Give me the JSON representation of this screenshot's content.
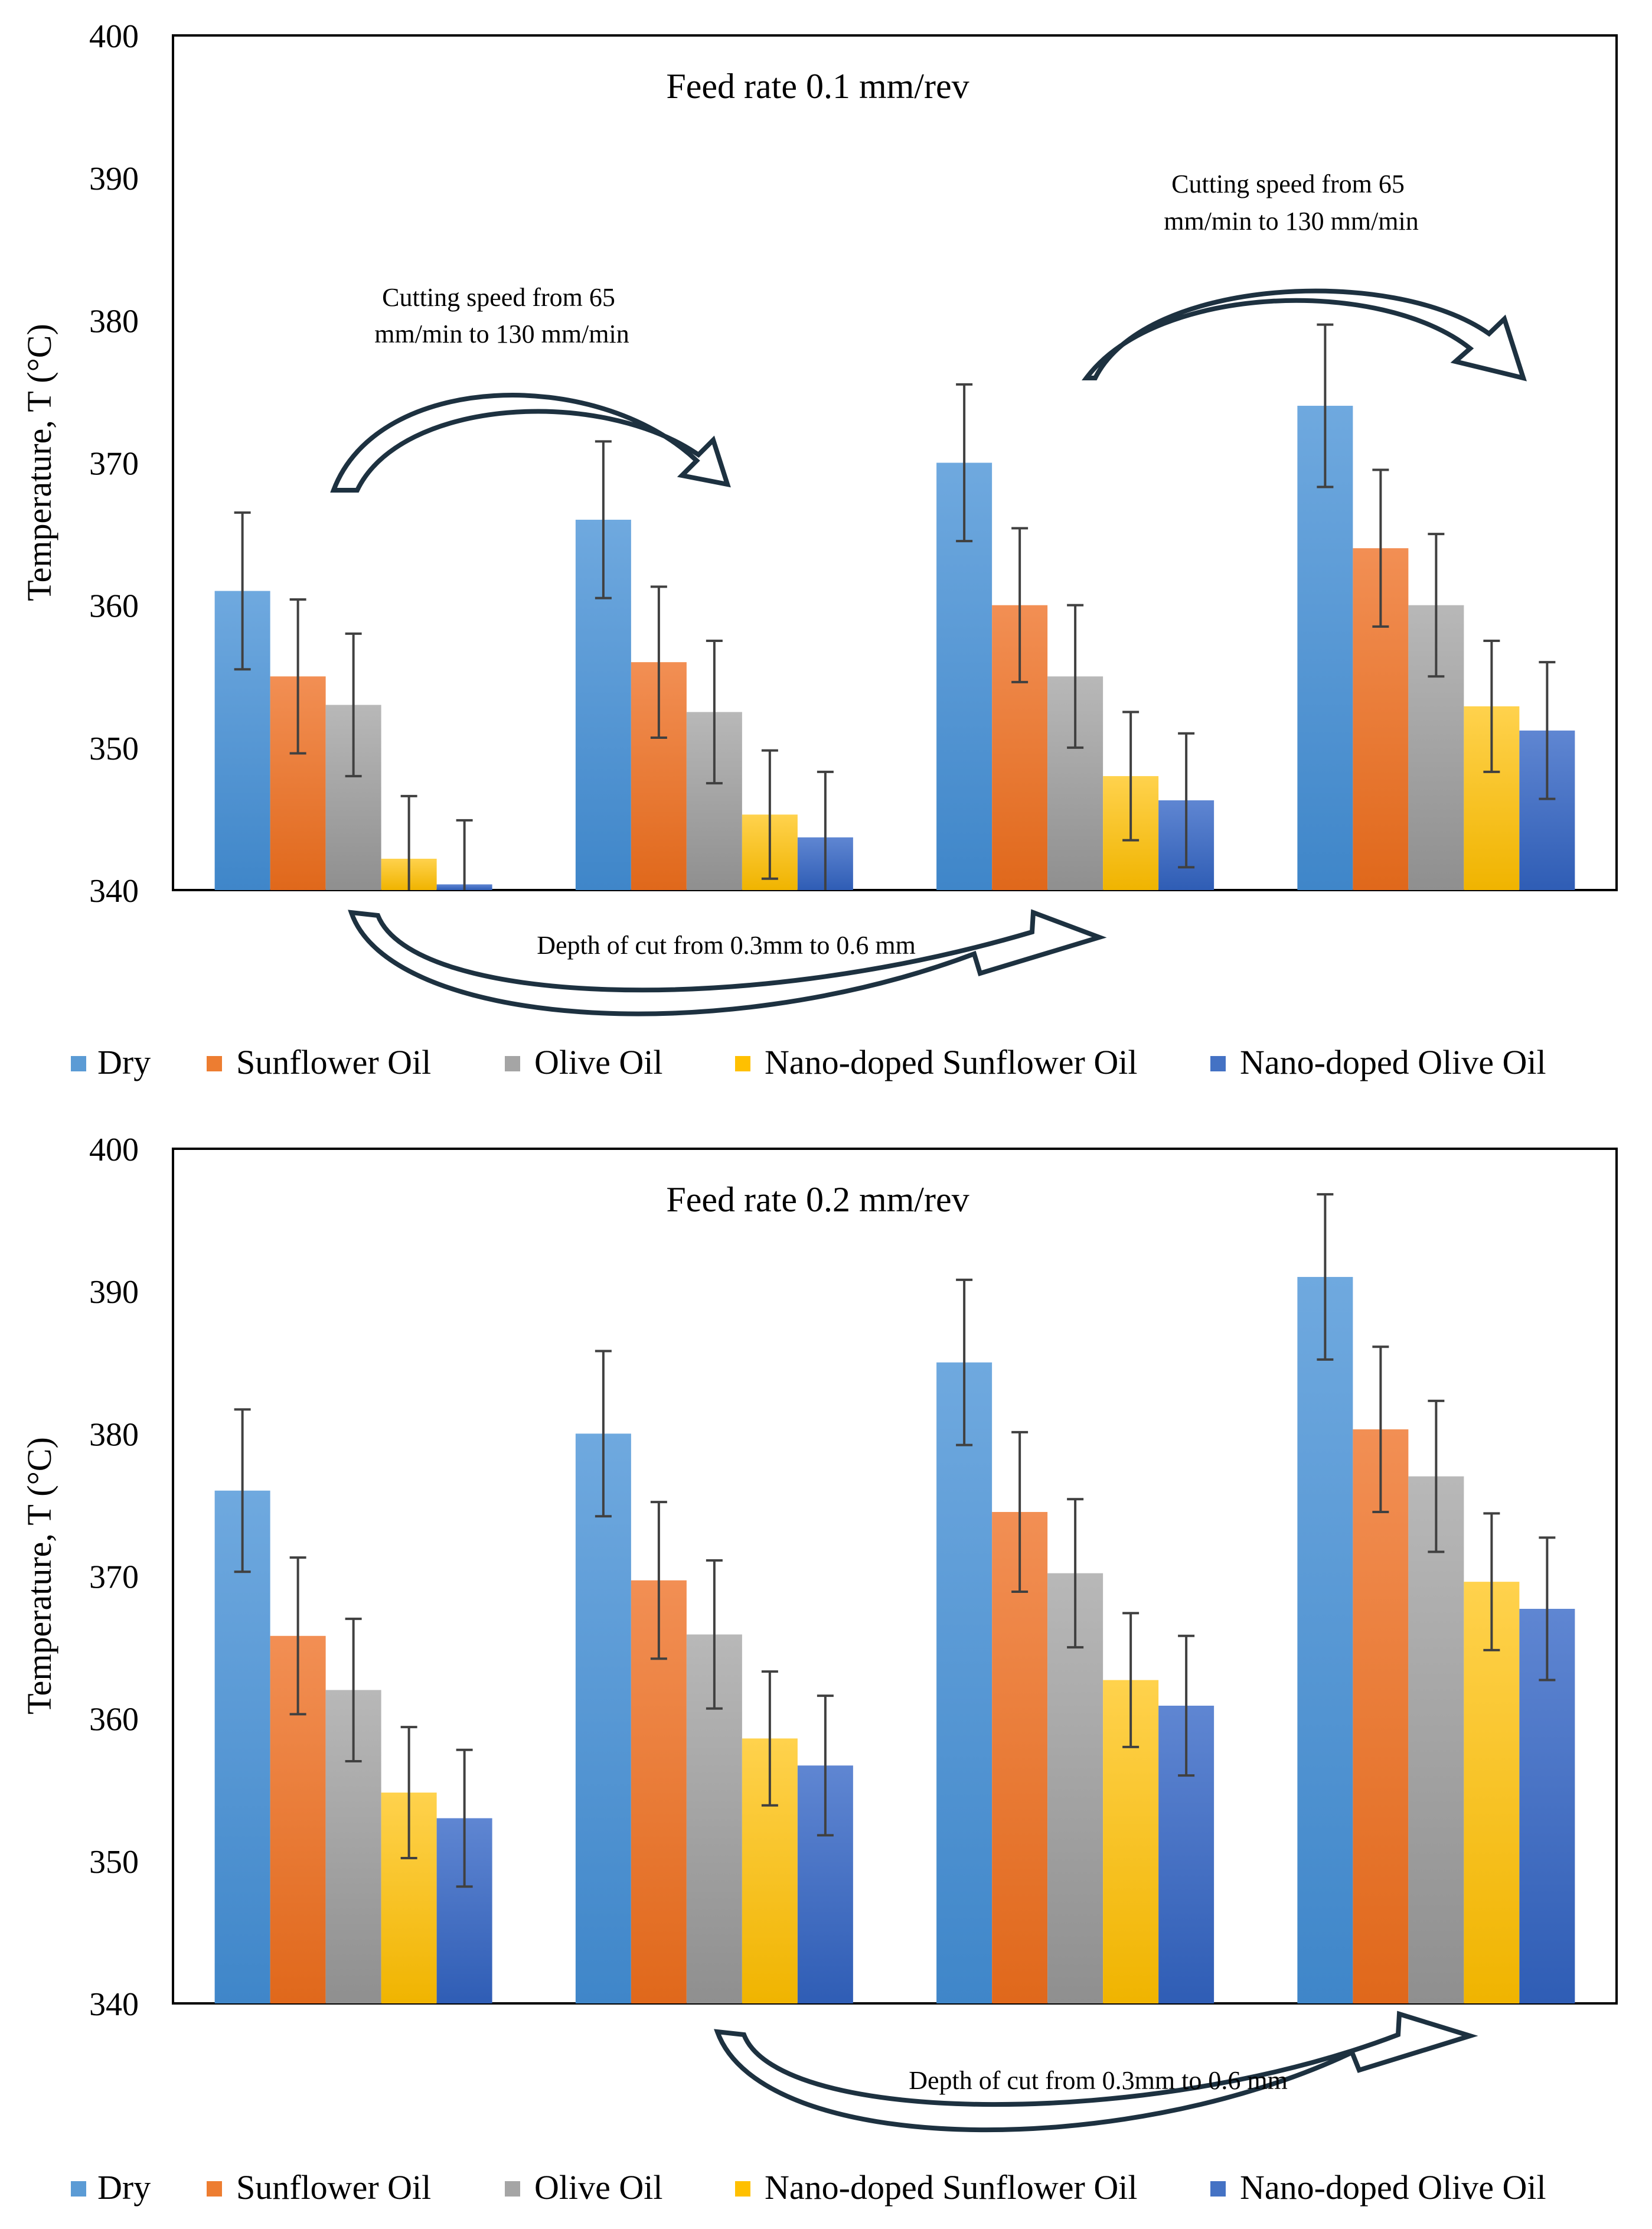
{
  "chart_data": [
    {
      "type": "bar",
      "title": "Feed rate 0.1 mm/rev",
      "ylabel": "Temperature, T (°C)",
      "xlabel": "",
      "ylim": [
        340,
        400
      ],
      "yticks": [
        340,
        350,
        360,
        370,
        380,
        390,
        400
      ],
      "grid": false,
      "legend": "bottom",
      "categories": [
        "",
        "",
        "",
        ""
      ],
      "series": [
        {
          "name": "Dry",
          "color": "#5B9BD5",
          "values": [
            361,
            366,
            370,
            374
          ],
          "errors": [
            5.5,
            5.5,
            5.5,
            5.7
          ]
        },
        {
          "name": "Sunflower Oil",
          "color": "#ED7D31",
          "values": [
            355,
            356,
            360,
            364
          ],
          "errors": [
            5.4,
            5.3,
            5.4,
            5.5
          ]
        },
        {
          "name": "Olive Oil",
          "color": "#A5A5A5",
          "values": [
            353,
            352.5,
            355,
            360
          ],
          "errors": [
            5.0,
            5.0,
            5.0,
            5.0
          ]
        },
        {
          "name": "Nano-doped Sunflower Oil",
          "color": "#FFC000",
          "values": [
            342.2,
            345.3,
            348,
            352.9
          ],
          "errors": [
            4.4,
            4.5,
            4.5,
            4.6
          ]
        },
        {
          "name": "Nano-doped Olive Oil",
          "color": "#4472C4",
          "values": [
            340.4,
            343.7,
            346.3,
            351.2
          ],
          "errors": [
            4.5,
            4.6,
            4.7,
            4.8
          ]
        }
      ],
      "annotations": [
        {
          "text_lines": [
            "Cutting speed from 65",
            "mm/min to 130 mm/min"
          ]
        },
        {
          "text_lines": [
            "Cutting speed from 65",
            "mm/min to 130 mm/min"
          ]
        },
        {
          "text": "Depth of cut from 0.3mm to 0.6 mm"
        }
      ]
    },
    {
      "type": "bar",
      "title": "Feed rate 0.2 mm/rev",
      "ylabel": "Temperature, T (°C)",
      "xlabel": "",
      "ylim": [
        340,
        400
      ],
      "yticks": [
        340,
        350,
        360,
        370,
        380,
        390,
        400
      ],
      "grid": false,
      "legend": "bottom",
      "categories": [
        "",
        "",
        "",
        ""
      ],
      "series": [
        {
          "name": "Dry",
          "color": "#5B9BD5",
          "values": [
            376,
            380,
            385,
            391
          ],
          "errors": [
            5.7,
            5.8,
            5.8,
            5.8
          ]
        },
        {
          "name": "Sunflower Oil",
          "color": "#ED7D31",
          "values": [
            365.8,
            369.7,
            374.5,
            380.3
          ],
          "errors": [
            5.5,
            5.5,
            5.6,
            5.8
          ]
        },
        {
          "name": "Olive Oil",
          "color": "#A5A5A5",
          "values": [
            362,
            365.9,
            370.2,
            377
          ],
          "errors": [
            5.0,
            5.2,
            5.2,
            5.3
          ]
        },
        {
          "name": "Nano-doped Sunflower Oil",
          "color": "#FFC000",
          "values": [
            354.8,
            358.6,
            362.7,
            369.6
          ],
          "errors": [
            4.6,
            4.7,
            4.7,
            4.8
          ]
        },
        {
          "name": "Nano-doped Olive Oil",
          "color": "#4472C4",
          "values": [
            353,
            356.7,
            360.9,
            367.7
          ],
          "errors": [
            4.8,
            4.9,
            4.9,
            5.0
          ]
        }
      ],
      "annotations": [
        {
          "text": "Depth of cut from 0.3mm to 0.6 mm"
        }
      ]
    }
  ]
}
